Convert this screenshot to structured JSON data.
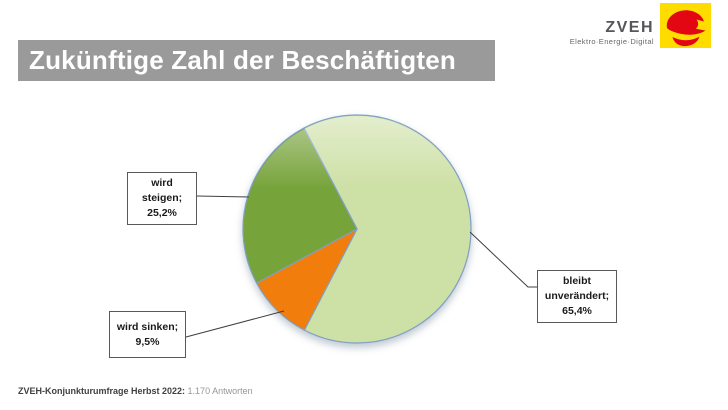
{
  "title": {
    "text": "Zukünftige Zahl der Beschäftigten",
    "bg_color": "#9A9A9A",
    "text_color": "#FFFFFF"
  },
  "logo": {
    "name": "ZVEH",
    "tagline": "Elektro·Energie·Digital",
    "brand_yellow": "#FFDC00",
    "brand_red": "#E30613",
    "text_gray": "#55565A"
  },
  "chart_data": {
    "type": "pie",
    "title": "Zukünftige Zahl der Beschäftigten",
    "legend_position": "none",
    "start_angle_deg": -27.7,
    "direction": "clockwise",
    "outline_color": "#7F9FC6",
    "slices": [
      {
        "label": "bleibt unverändert",
        "value": 65.4,
        "display": "bleibt unverändert; 65,4%",
        "color": "#CDE0A5"
      },
      {
        "label": "wird sinken",
        "value": 9.5,
        "display": "wird sinken; 9,5%",
        "color": "#F07D0C"
      },
      {
        "label": "wird steigen",
        "value": 25.2,
        "display": "wird steigen; 25,2%",
        "color": "#77A33B"
      }
    ]
  },
  "callouts": [
    {
      "id": "wird-steigen",
      "lines": [
        "wird",
        "steigen;",
        "25,2%"
      ]
    },
    {
      "id": "wird-sinken",
      "lines": [
        "wird sinken;",
        "9,5%"
      ]
    },
    {
      "id": "bleibt-unveraendert",
      "lines": [
        "bleibt",
        "unverändert;",
        "65,4%"
      ]
    }
  ],
  "footer": {
    "bold": "ZVEH-Konjunkturumfrage Herbst 2022:",
    "normal": "1.170 Antworten"
  }
}
